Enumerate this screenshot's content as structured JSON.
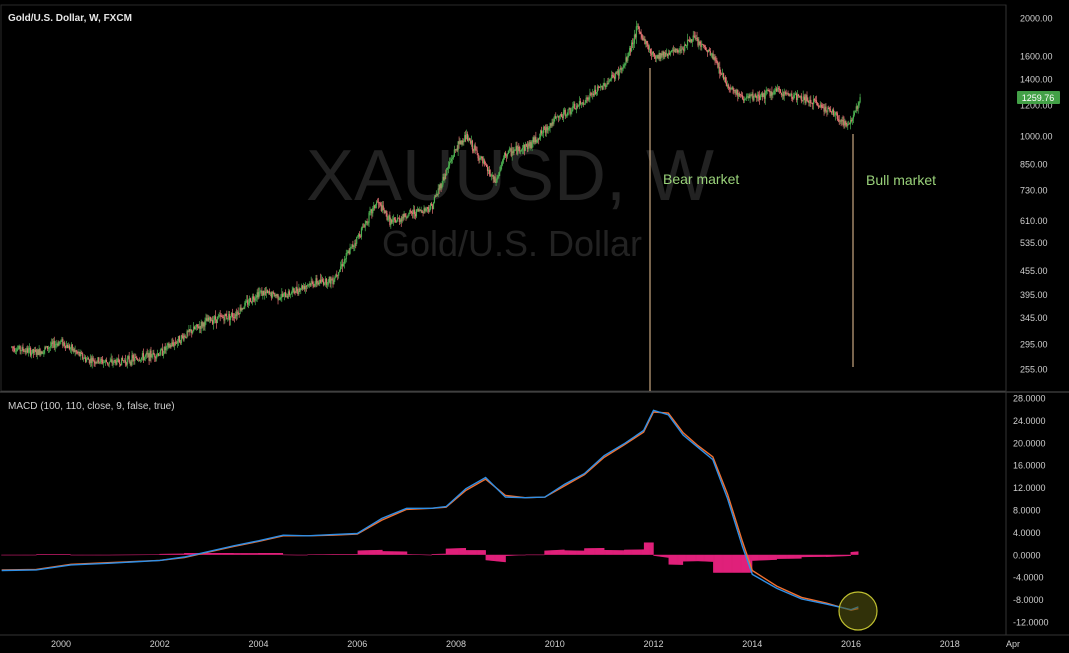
{
  "header": {
    "symbol_title": "Gold/U.S. Dollar, W, FXCM",
    "watermark_symbol": "XAUUSD, W",
    "watermark_name": "Gold/U.S. Dollar"
  },
  "indicator_label": "MACD (100, 110, close, 9, false, true)",
  "annotations": {
    "bear": "Bear market",
    "bull": "Bull market"
  },
  "price_badge": "1259.76",
  "colors": {
    "background": "#000000",
    "up_candle": "#4caf50",
    "down_candle": "#e57373",
    "macd_line": "#2f8fe6",
    "signal_line": "#f07030",
    "histogram": "#e0207a",
    "annotation_text": "#9ad27a",
    "vline": "#f0c89a",
    "badge": "#43a047",
    "circle": "#bfbf30"
  },
  "chart_data": [
    {
      "type": "line",
      "title": "Gold/U.S. Dollar, W, FXCM",
      "scale": "log",
      "ylim": [
        240,
        2050
      ],
      "y_ticks": [
        "2000.00",
        "1600.00",
        "1400.00",
        "1200.00",
        "1000.00",
        "850.00",
        "730.00",
        "610.00",
        "535.00",
        "455.00",
        "395.00",
        "345.00",
        "295.00",
        "255.00"
      ],
      "x": [
        1999.0,
        1999.5,
        2000.0,
        2000.5,
        2001.0,
        2001.5,
        2002.0,
        2002.5,
        2003.0,
        2003.5,
        2004.0,
        2004.5,
        2005.0,
        2005.5,
        2006.0,
        2006.4,
        2006.7,
        2007.0,
        2007.5,
        2008.0,
        2008.2,
        2008.8,
        2009.0,
        2009.5,
        2010.0,
        2010.5,
        2011.0,
        2011.4,
        2011.67,
        2012.0,
        2012.5,
        2012.8,
        2013.2,
        2013.5,
        2013.8,
        2014.0,
        2014.5,
        2015.0,
        2015.5,
        2015.95,
        2016.2
      ],
      "close": [
        290,
        280,
        300,
        270,
        265,
        270,
        280,
        310,
        340,
        350,
        400,
        390,
        420,
        430,
        550,
        680,
        600,
        630,
        660,
        930,
        1000,
        760,
        900,
        950,
        1100,
        1200,
        1350,
        1500,
        1880,
        1600,
        1650,
        1780,
        1600,
        1350,
        1250,
        1250,
        1300,
        1250,
        1180,
        1060,
        1259.76
      ],
      "annotations": [
        "Bear market",
        "Bull market"
      ],
      "last_price": "1259.76"
    },
    {
      "type": "line",
      "title": "MACD (100, 110, close, 9, false, true)",
      "ylim": [
        -13.5,
        28.2
      ],
      "y_ticks": [
        "28.0000",
        "24.0000",
        "20.0000",
        "16.0000",
        "12.0000",
        "8.0000",
        "4.0000",
        "0.0000",
        "-4.0000",
        "-8.0000",
        "-12.0000"
      ],
      "x_ticks": [
        "2000",
        "2002",
        "2004",
        "2006",
        "2008",
        "2010",
        "2012",
        "2014",
        "2016",
        "2018",
        "Apr"
      ],
      "x": [
        1998.8,
        1999.5,
        2000.2,
        2001.0,
        2002.0,
        2002.5,
        2003.0,
        2003.5,
        2004.0,
        2004.5,
        2005.0,
        2005.5,
        2006.0,
        2006.5,
        2007.0,
        2007.5,
        2007.8,
        2008.2,
        2008.6,
        2009.0,
        2009.4,
        2009.8,
        2010.2,
        2010.6,
        2011.0,
        2011.4,
        2011.8,
        2012.0,
        2012.3,
        2012.6,
        2012.9,
        2013.2,
        2013.5,
        2013.8,
        2014.0,
        2014.5,
        2015.0,
        2015.5,
        2016.0,
        2016.15
      ],
      "series": [
        {
          "values": [
            -2.8,
            -2.7,
            -1.8,
            -1.5,
            -1.0,
            -0.4,
            0.6,
            1.6,
            2.5,
            3.5,
            3.4,
            3.6,
            3.8,
            6.5,
            8.3,
            8.3,
            8.6,
            11.8,
            13.8,
            10.3,
            10.2,
            10.3,
            12.6,
            14.5,
            17.7,
            19.8,
            22.2,
            25.8,
            25.0,
            21.4,
            19.2,
            17.0,
            10.0,
            1.5,
            -3.5,
            -6.0,
            -7.9,
            -8.8,
            -9.8,
            -9.3
          ]
        },
        {
          "values": [
            -2.7,
            -2.6,
            -1.7,
            -1.4,
            -1.0,
            -0.5,
            0.5,
            1.5,
            2.4,
            3.4,
            3.4,
            3.5,
            3.7,
            6.2,
            8.1,
            8.3,
            8.5,
            11.5,
            13.5,
            10.6,
            10.2,
            10.3,
            12.3,
            14.3,
            17.4,
            19.6,
            21.9,
            25.5,
            25.3,
            21.8,
            19.5,
            17.5,
            10.8,
            2.4,
            -2.8,
            -5.6,
            -7.6,
            -8.6,
            -9.9,
            -9.6
          ]
        }
      ]
    }
  ]
}
